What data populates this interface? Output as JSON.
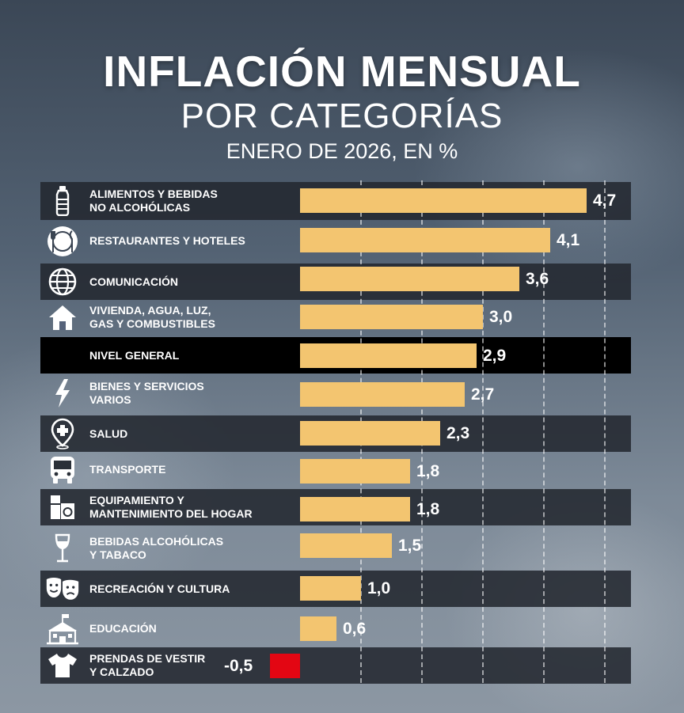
{
  "header": {
    "title": "INFLACIÓN MENSUAL",
    "subtitle": "POR CATEGORÍAS",
    "period": "ENERO DE 2026, EN %"
  },
  "colors": {
    "bar": "#f3c570",
    "negative_bar": "#e30613",
    "highlight_row": "#000000",
    "dark_row": "#23282f"
  },
  "chart_data": {
    "type": "bar",
    "orientation": "horizontal",
    "title": "INFLACIÓN MENSUAL POR CATEGORÍAS",
    "subtitle": "ENERO DE 2026, EN %",
    "xlim": [
      -0.5,
      5
    ],
    "grid": true,
    "categories": [
      "ALIMENTOS Y BEBIDAS\nNO ALCOHÓLICAS",
      "RESTAURANTES Y HOTELES",
      "COMUNICACIÓN",
      "VIVIENDA, AGUA, LUZ,\nGAS Y COMBUSTIBLES",
      "NIVEL GENERAL",
      "BIENES Y SERVICIOS\nVARIOS",
      "SALUD",
      "TRANSPORTE",
      "EQUIPAMIENTO Y\nMANTENIMIENTO DEL HOGAR",
      "BEBIDAS ALCOHÓLICAS\nY TABACO",
      "RECREACIÓN Y CULTURA",
      "EDUCACIÓN",
      "PRENDAS DE VESTIR\nY CALZADO"
    ],
    "values": [
      4.7,
      4.1,
      3.6,
      3.0,
      2.9,
      2.7,
      2.3,
      1.8,
      1.8,
      1.5,
      1.0,
      0.6,
      -0.5
    ],
    "value_labels": [
      "4,7",
      "4,1",
      "3,6",
      "3,0",
      "2,9",
      "2,7",
      "2,3",
      "1,8",
      "1,8",
      "1,5",
      "1,0",
      "0,6",
      "-0,5"
    ],
    "icons": [
      "bottle-icon",
      "plate-icon",
      "globe-icon",
      "house-icon",
      "",
      "lightning-icon",
      "health-pin-icon",
      "bus-icon",
      "appliances-icon",
      "wine-glass-icon",
      "theater-masks-icon",
      "school-icon",
      "tshirt-icon"
    ],
    "highlight": "NIVEL GENERAL"
  }
}
